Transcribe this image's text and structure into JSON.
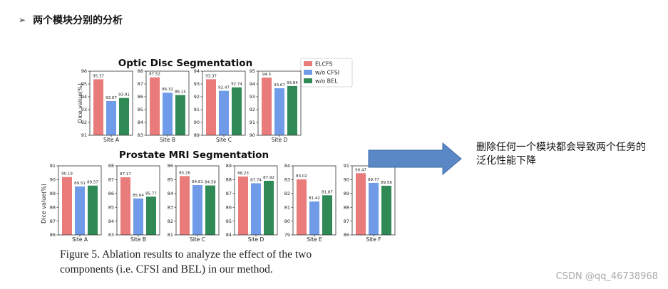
{
  "heading": {
    "bullet": "➢",
    "text": "两个模块分别的分析"
  },
  "note": "删除任何一个模块都会导致两个任务的泛化性能下降",
  "caption": "Figure 5. Ablation results to analyze the effect of the two components (i.e. CFSI and BEL) in our method.",
  "watermark": "CSDN @qq_46738968",
  "colors": {
    "ELCFS": "#ea7b7b",
    "w/o CFSI": "#6f9be8",
    "w/o BEL": "#2f8a55",
    "arrow": "#5a88c6"
  },
  "legend": [
    "ELCFS",
    "w/o CFSI",
    "w/o BEL"
  ],
  "chart_data": [
    {
      "type": "bar",
      "title": "Optic Disc Segmentation",
      "ylabel": "Dice value(%)",
      "series_names": [
        "ELCFS",
        "w/o CFSI",
        "w/o BEL"
      ],
      "panels": [
        {
          "category": "Site A",
          "ylim": [
            91,
            96
          ],
          "yticks": [
            91,
            92,
            93,
            94,
            95,
            96
          ],
          "values": [
            95.37,
            93.67,
            93.91
          ]
        },
        {
          "category": "Site B",
          "ylim": [
            83,
            88
          ],
          "yticks": [
            83,
            84,
            85,
            86,
            87,
            88
          ],
          "values": [
            87.52,
            86.32,
            86.14
          ]
        },
        {
          "category": "Site C",
          "ylim": [
            89,
            94
          ],
          "yticks": [
            89,
            90,
            91,
            92,
            93,
            94
          ],
          "values": [
            93.37,
            92.47,
            92.74
          ]
        },
        {
          "category": "Site D",
          "ylim": [
            90,
            95
          ],
          "yticks": [
            90,
            91,
            92,
            93,
            94,
            95
          ],
          "values": [
            94.5,
            93.67,
            93.84
          ]
        }
      ]
    },
    {
      "type": "bar",
      "title": "Prostate MRI Segmentation",
      "ylabel": "Dice value(%)",
      "series_names": [
        "ELCFS",
        "w/o CFSI",
        "w/o BEL"
      ],
      "panels": [
        {
          "category": "Site A",
          "ylim": [
            86,
            91
          ],
          "yticks": [
            86,
            87,
            88,
            89,
            90,
            91
          ],
          "values": [
            90.19,
            89.51,
            89.57
          ]
        },
        {
          "category": "Site B",
          "ylim": [
            83,
            88
          ],
          "yticks": [
            83,
            84,
            85,
            86,
            87,
            88
          ],
          "values": [
            87.17,
            85.64,
            85.77
          ]
        },
        {
          "category": "Site C",
          "ylim": [
            81,
            86
          ],
          "yticks": [
            81,
            82,
            83,
            84,
            85,
            86
          ],
          "values": [
            85.26,
            84.61,
            84.58
          ]
        },
        {
          "category": "Site D",
          "ylim": [
            84,
            89
          ],
          "yticks": [
            84,
            85,
            86,
            87,
            88,
            89
          ],
          "values": [
            88.23,
            87.74,
            87.92
          ]
        },
        {
          "category": "Site E",
          "ylim": [
            79,
            84
          ],
          "yticks": [
            79,
            80,
            81,
            82,
            83,
            84
          ],
          "values": [
            83.02,
            81.42,
            81.87
          ]
        },
        {
          "category": "Site F",
          "ylim": [
            86,
            91
          ],
          "yticks": [
            86,
            87,
            88,
            89,
            90,
            91
          ],
          "values": [
            90.47,
            89.77,
            89.56
          ]
        }
      ]
    }
  ]
}
